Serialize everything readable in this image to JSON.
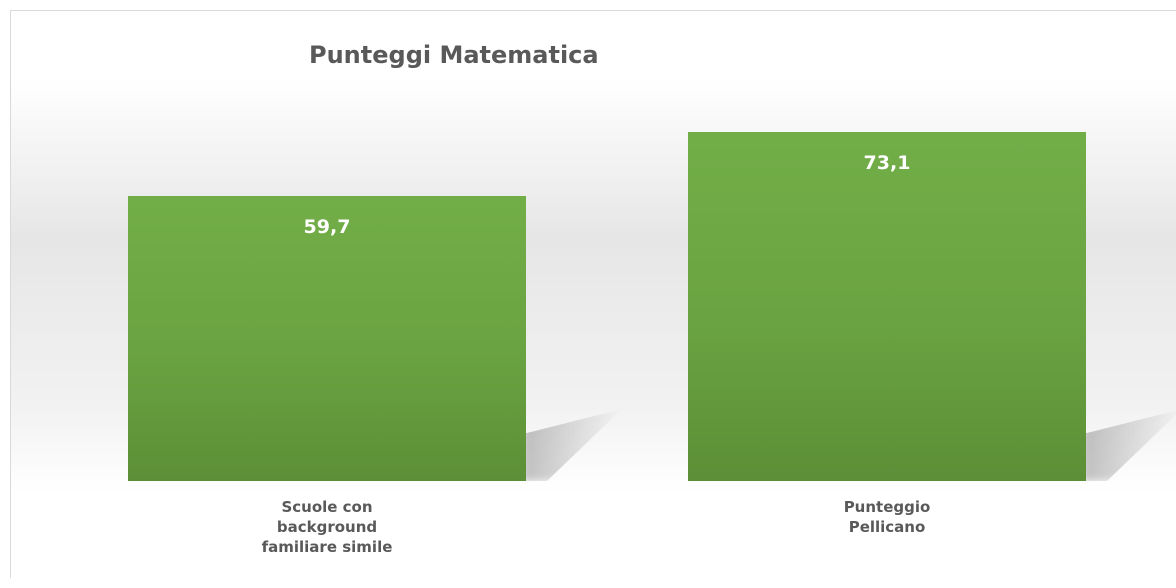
{
  "chart_data": {
    "type": "bar",
    "title": "Punteggi Matematica",
    "categories": [
      "Scuole con background familiare simile",
      "Punteggio Pellicano"
    ],
    "values": [
      59.7,
      73.1
    ],
    "value_labels": [
      "59,7",
      "73,1"
    ],
    "color": "#70ad47"
  }
}
